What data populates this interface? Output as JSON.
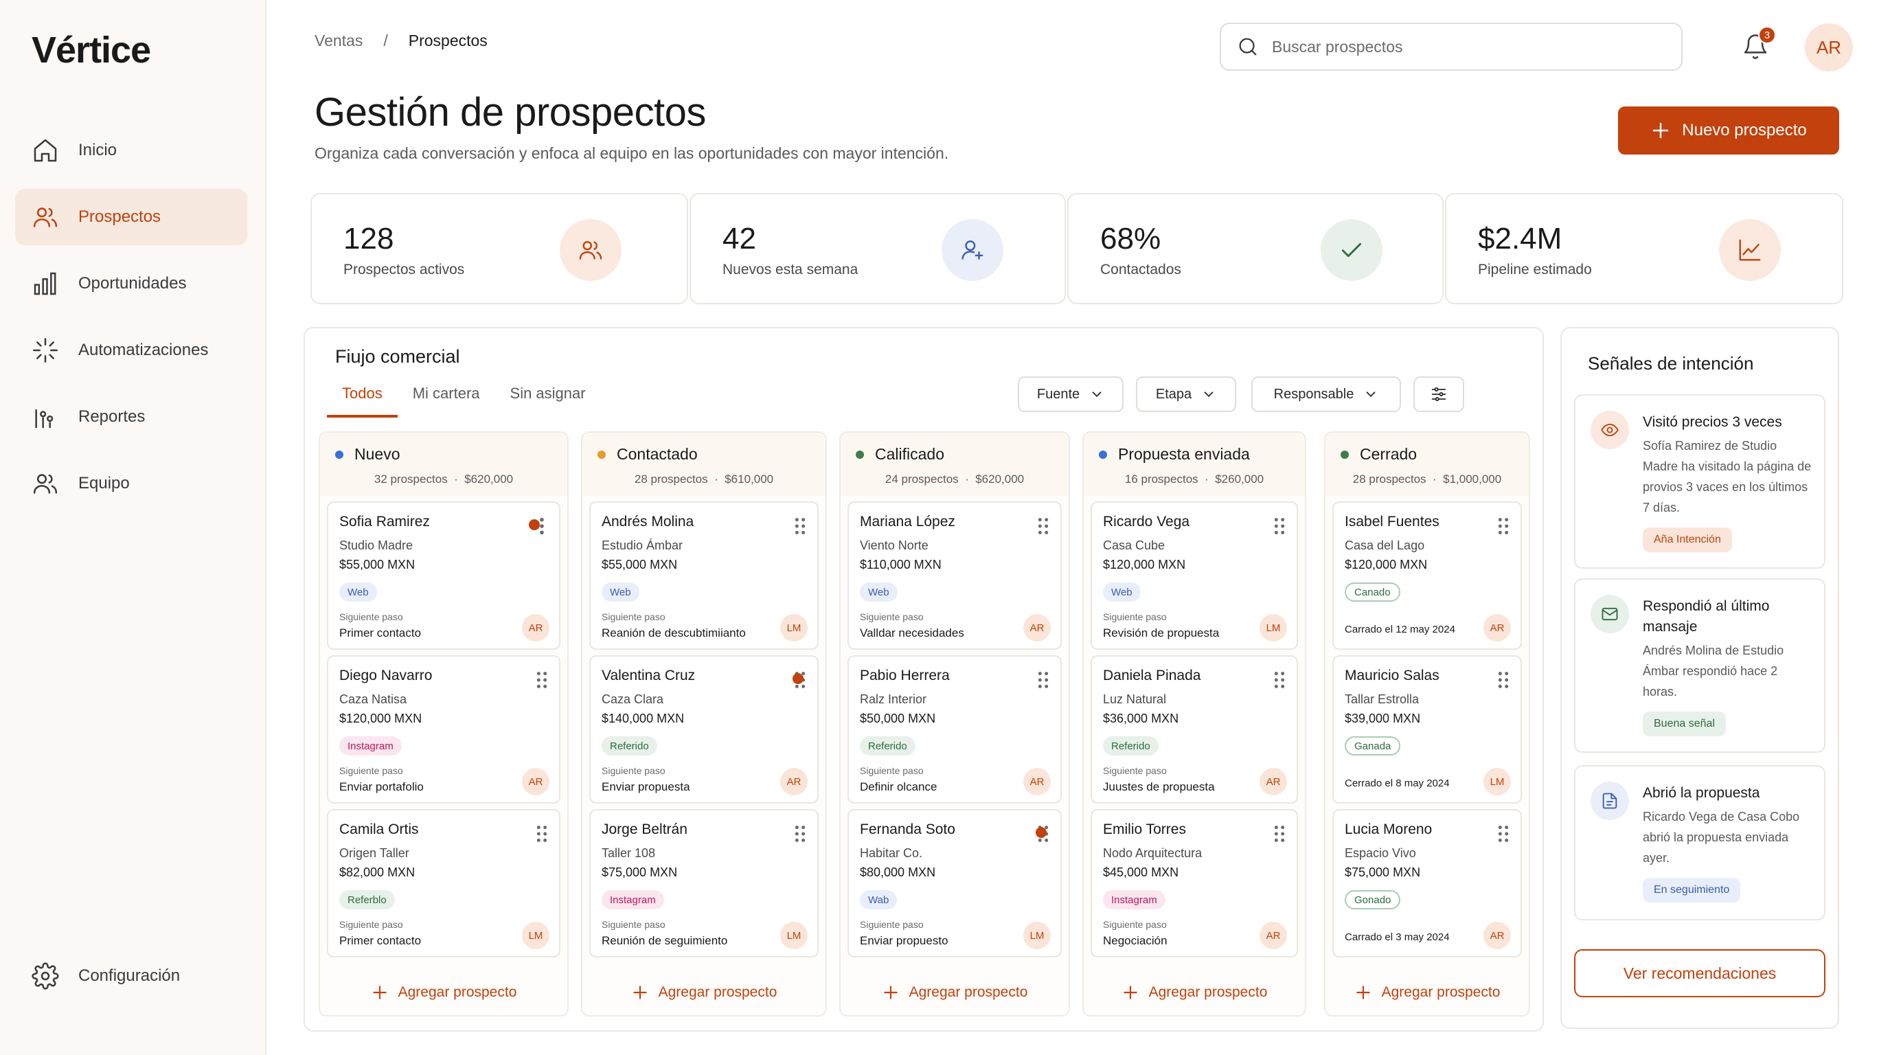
{
  "app": {
    "logo": "Vértice"
  },
  "sidebar": {
    "items": [
      {
        "label": "Inicio",
        "icon": "home-icon"
      },
      {
        "label": "Prospectos",
        "icon": "users-icon",
        "active": true
      },
      {
        "label": "Oportunidades",
        "icon": "bar-chart-icon"
      },
      {
        "label": "Automatizaciones",
        "icon": "sparkle-icon"
      },
      {
        "label": "Reportes",
        "icon": "chart-icon"
      },
      {
        "label": "Equipo",
        "icon": "team-icon"
      }
    ],
    "config_label": "Configuración"
  },
  "header": {
    "breadcrumb": [
      "Ventas",
      "/",
      "Prospectos"
    ],
    "search_placeholder": "Buscar prospectos",
    "notification_count": "3",
    "avatar": "AR",
    "title": "Gestión de prospectos",
    "subtitle": "Organiza cada conversación y enfoca al equipo en las oportunidades con mayor intención.",
    "new_button": "Nuevo prospecto"
  },
  "stats": [
    {
      "value": "128",
      "label": "Prospectos activos",
      "icon": "users-icon",
      "bg": "#fbe9df",
      "color": "#c2410c"
    },
    {
      "value": "42",
      "label": "Nuevos esta semana",
      "icon": "user-plus-icon",
      "bg": "#e9eef8",
      "color": "#3a5bb5"
    },
    {
      "value": "68%",
      "label": "Contactados",
      "icon": "check-icon",
      "bg": "#e8f0ea",
      "color": "#2e6b3e"
    },
    {
      "value": "$2.4M",
      "label": "Pipeline estimado",
      "icon": "trend-icon",
      "bg": "#fbe9df",
      "color": "#c2410c"
    }
  ],
  "flow": {
    "title": "Fiujo comercial",
    "tabs": [
      "Todos",
      "Mi cartera",
      "Sin asignar"
    ],
    "filters": [
      "Fuente",
      "Etapa",
      "Responsable"
    ],
    "add_label": "Agregar prospecto",
    "next_step_label": "Siguiente paso",
    "columns": [
      {
        "title": "Nuevo",
        "color": "#3a6fd8",
        "count": "32 prospectos",
        "amount": "$620,000",
        "cards": [
          {
            "name": "Sofia Ramirez",
            "company": "Studio Madre",
            "amount": "$55,000 MXN",
            "tag": "Web",
            "tag_type": "web",
            "step": "Primer contacto",
            "owner": "AR",
            "flag": true
          },
          {
            "name": "Diego Navarro",
            "company": "Caza Natisa",
            "amount": "$120,000 MXN",
            "tag": "Instagram",
            "tag_type": "ig",
            "step": "Enviar portafolio",
            "owner": "AR"
          },
          {
            "name": "Camila Ortis",
            "company": "Origen Taller",
            "amount": "$82,000 MXN",
            "tag": "Referblo",
            "tag_type": "ref",
            "step": "Primer contacto",
            "owner": "LM"
          }
        ]
      },
      {
        "title": "Contactado",
        "color": "#e89a2c",
        "count": "28 prospectos",
        "amount": "$610,000",
        "cards": [
          {
            "name": "Andrés Molina",
            "company": "Estudio Ámbar",
            "amount": "$55,000 MXN",
            "tag": "Web",
            "tag_type": "web",
            "step": "Reanión de descubtimiianto",
            "owner": "LM"
          },
          {
            "name": "Valentina Cruz",
            "company": "Caza Clara",
            "amount": "$140,000 MXN",
            "tag": "Referido",
            "tag_type": "ref",
            "step": "Enviar propuesta",
            "owner": "AR",
            "flag": true
          },
          {
            "name": "Jorge Beltrán",
            "company": "Taller 108",
            "amount": "$75,000 MXN",
            "tag": "Instagram",
            "tag_type": "ig",
            "step": "Reunión de seguimiento",
            "owner": "LM"
          }
        ]
      },
      {
        "title": "Calificado",
        "color": "#3f7d4e",
        "count": "24 prospectos",
        "amount": "$620,000",
        "cards": [
          {
            "name": "Mariana López",
            "company": "Viento Norte",
            "amount": "$110,000 MXN",
            "tag": "Web",
            "tag_type": "web",
            "step": "Valldar necesidades",
            "owner": "AR"
          },
          {
            "name": "Pabio Herrera",
            "company": "Ralz Interior",
            "amount": "$50,000 MXN",
            "tag": "Referido",
            "tag_type": "ref",
            "step": "Definir olcance",
            "owner": "AR"
          },
          {
            "name": "Fernanda Soto",
            "company": "Habitar Co.",
            "amount": "$80,000 MXN",
            "tag": "Wab",
            "tag_type": "web",
            "step": "Enviar propuesto",
            "owner": "LM",
            "flag": true
          }
        ]
      },
      {
        "title": "Propuesta enviada",
        "color": "#3a6fd8",
        "count": "16 prospectos",
        "amount": "$260,000",
        "cards": [
          {
            "name": "Ricardo Vega",
            "company": "Casa Cube",
            "amount": "$120,000 MXN",
            "tag": "Web",
            "tag_type": "web",
            "step": "Revisión de propuesta",
            "owner": "LM"
          },
          {
            "name": "Daniela Pinada",
            "company": "Luz Natural",
            "amount": "$36,000 MXN",
            "tag": "Referido",
            "tag_type": "ref",
            "step": "Juustes de propuesta",
            "owner": "AR"
          },
          {
            "name": "Emilio Torres",
            "company": "Nodo Arquitectura",
            "amount": "$45,000 MXN",
            "tag": "Instagram",
            "tag_type": "ig",
            "step": "Negociación",
            "owner": "AR"
          }
        ]
      },
      {
        "title": "Cerrado",
        "color": "#3f7d4e",
        "count": "28 prospectos",
        "amount": "$1,000,000",
        "cards": [
          {
            "name": "Isabel Fuentes",
            "company": "Casa del Lago",
            "amount": "$120,000 MXN",
            "tag": "Canado",
            "tag_type": "st",
            "closed": "Carrado el 12 may 2024",
            "owner": "AR"
          },
          {
            "name": "Mauricio Salas",
            "company": "Tallar Estrolla",
            "amount": "$39,000 MXN",
            "tag": "Ganada",
            "tag_type": "st",
            "closed": "Cerrado el 8 may 2024",
            "owner": "LM"
          },
          {
            "name": "Lucia Moreno",
            "company": "Espacio Vivo",
            "amount": "$75,000 MXN",
            "tag": "Gonado",
            "tag_type": "st",
            "closed": "Carrado el 3 may 2024",
            "owner": "AR"
          }
        ]
      }
    ]
  },
  "signals": {
    "title": "Señales de intención",
    "items": [
      {
        "title": "Visitó precios 3 veces",
        "desc": "Sofía Ramirez de Studio Madre ha visitado la página de provios 3 vaces en los últimos 7 días.",
        "badge": "Aña Intención",
        "icon": "eye-icon",
        "icon_bg": "#fbe9df",
        "icon_color": "#c2410c",
        "badge_bg": "#fbe5da",
        "badge_color": "#c2410c"
      },
      {
        "title": "Respondió al último mansaje",
        "desc": "Andrés Molina de Estudio Ámbar respondió hace 2 horas.",
        "badge": "Buena señal",
        "icon": "mail-icon",
        "icon_bg": "#e8f0ea",
        "icon_color": "#2e6b3e",
        "badge_bg": "#e7f1e9",
        "badge_color": "#2e6b3e"
      },
      {
        "title": "Abrió la propuesta",
        "desc": "Ricardo Vega de Casa Cobo abrió la propuesta enviada ayer.",
        "badge": "En seguimiento",
        "icon": "document-icon",
        "icon_bg": "#e9eef8",
        "icon_color": "#3a5bb5",
        "badge_bg": "#e8eefb",
        "badge_color": "#3a5bb5"
      }
    ],
    "button": "Ver recomendaciones"
  }
}
